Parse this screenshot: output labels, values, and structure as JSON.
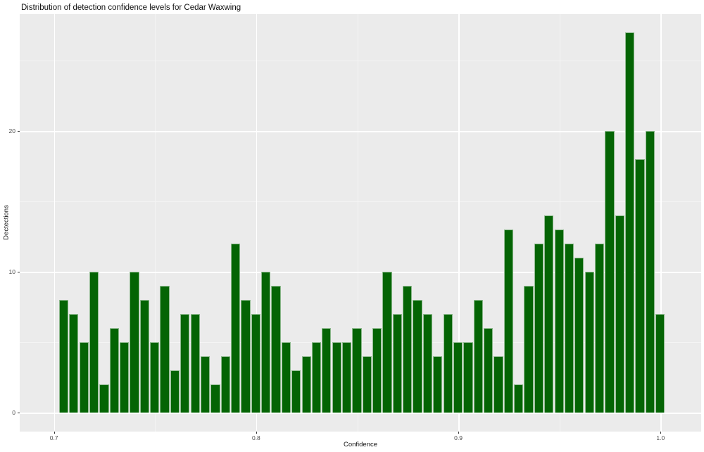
{
  "chart_data": {
    "type": "histogram",
    "title": "Distribution of detection confidence levels for Cedar Waxwing",
    "xlabel": "Confidence",
    "ylabel": "Dectections",
    "bin_start": 0.7025,
    "bin_width": 0.005,
    "bin_centers_first": 0.705,
    "bin_centers_last": 1.0,
    "counts": [
      8,
      7,
      5,
      10,
      2,
      6,
      5,
      10,
      8,
      5,
      9,
      3,
      7,
      7,
      4,
      2,
      4,
      12,
      8,
      7,
      10,
      9,
      5,
      3,
      4,
      5,
      6,
      5,
      5,
      6,
      4,
      6,
      10,
      7,
      9,
      8,
      7,
      4,
      7,
      5,
      5,
      8,
      6,
      4,
      13,
      2,
      9,
      12,
      14,
      13,
      12,
      11,
      10,
      12,
      20,
      14,
      27,
      18,
      20,
      7
    ],
    "x_tick_values": [
      0.7,
      0.8,
      0.9,
      1.0
    ],
    "x_tick_labels": [
      "0.7",
      "0.8",
      "0.9",
      "1.0"
    ],
    "y_tick_values": [
      0,
      10,
      20
    ],
    "y_tick_labels": [
      "0",
      "10",
      "20"
    ],
    "x_minor_gridlines": [
      0.75,
      0.85,
      0.95
    ],
    "y_minor_gridlines": [
      5,
      15,
      25
    ],
    "xlim": [
      0.683,
      1.0205
    ],
    "ylim": [
      -1.35,
      28.35
    ],
    "grid": true,
    "legend": false,
    "bar_color": "#046404",
    "panel_background": "#EBEBEB",
    "gridline_major_color": "#FFFFFF",
    "tick_text_color": "#4D4D4D"
  }
}
